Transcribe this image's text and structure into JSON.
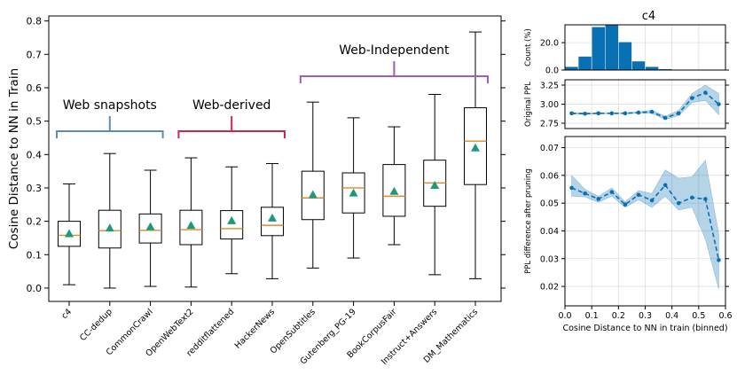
{
  "chart_data": [
    {
      "type": "box",
      "title": "",
      "xlabel": "",
      "ylabel": "Cosine Distance to NN in Train",
      "ylim": [
        -0.04,
        0.815
      ],
      "yticks": [
        "0.0",
        "0.1",
        "0.2",
        "0.3",
        "0.4",
        "0.5",
        "0.6",
        "0.7",
        "0.8"
      ],
      "categories": [
        "c4",
        "CC-dedup",
        "CommonCrawl",
        "OpenWebText2",
        "redditflattened",
        "HackerNews",
        "OpenSubtitles",
        "Gutenberg_PG-19",
        "BookCorpusFair",
        "Instruct+Answers",
        "DM_Mathematics"
      ],
      "boxes": [
        {
          "whislo": 0.01,
          "q1": 0.125,
          "med": 0.158,
          "q3": 0.2,
          "whishi": 0.312,
          "mean": 0.163
        },
        {
          "whislo": 0.0,
          "q1": 0.12,
          "med": 0.172,
          "q3": 0.233,
          "whishi": 0.403,
          "mean": 0.18
        },
        {
          "whislo": 0.005,
          "q1": 0.135,
          "med": 0.173,
          "q3": 0.222,
          "whishi": 0.353,
          "mean": 0.184
        },
        {
          "whislo": 0.003,
          "q1": 0.13,
          "med": 0.175,
          "q3": 0.233,
          "whishi": 0.39,
          "mean": 0.188
        },
        {
          "whislo": 0.043,
          "q1": 0.147,
          "med": 0.178,
          "q3": 0.232,
          "whishi": 0.363,
          "mean": 0.202
        },
        {
          "whislo": 0.028,
          "q1": 0.157,
          "med": 0.188,
          "q3": 0.242,
          "whishi": 0.373,
          "mean": 0.21
        },
        {
          "whislo": 0.06,
          "q1": 0.205,
          "med": 0.27,
          "q3": 0.35,
          "whishi": 0.557,
          "mean": 0.28
        },
        {
          "whislo": 0.09,
          "q1": 0.225,
          "med": 0.3,
          "q3": 0.345,
          "whishi": 0.51,
          "mean": 0.285
        },
        {
          "whislo": 0.13,
          "q1": 0.215,
          "med": 0.275,
          "q3": 0.37,
          "whishi": 0.483,
          "mean": 0.29
        },
        {
          "whislo": 0.04,
          "q1": 0.245,
          "med": 0.315,
          "q3": 0.383,
          "whishi": 0.58,
          "mean": 0.308
        },
        {
          "whislo": 0.028,
          "q1": 0.31,
          "med": 0.44,
          "q3": 0.54,
          "whishi": 0.767,
          "mean": 0.42
        }
      ],
      "groups": [
        {
          "label": "Web snapshots",
          "color": "#5a8db3",
          "from": 0,
          "to": 2
        },
        {
          "label": "Web-derived",
          "color": "#c8284b",
          "from": 3,
          "to": 5
        },
        {
          "label": "Web-Independent",
          "color": "#9e5cc0",
          "from": 6,
          "to": 10
        }
      ],
      "colors": {
        "box": "#000000",
        "median": "#e08a2c",
        "mean": "#1a9a7a"
      }
    },
    {
      "type": "bar",
      "title": "c4",
      "ylabel": "Count (%)",
      "ylim": [
        0,
        33
      ],
      "yticks": [
        "0.0",
        "20.0"
      ],
      "bin_edges": [
        0.0,
        0.05,
        0.1,
        0.15,
        0.2,
        0.25,
        0.3,
        0.35,
        0.4,
        0.45,
        0.5
      ],
      "values": [
        2.5,
        10,
        31.5,
        33,
        20.5,
        6.5,
        2.5,
        0.8,
        0.3,
        0.2
      ],
      "color": "#0a70b4"
    },
    {
      "type": "line",
      "ylabel": "Original PPL",
      "ylim": [
        2.68,
        3.32
      ],
      "yticks": [
        "2.75",
        "3.00",
        "3.25"
      ],
      "x": [
        0.025,
        0.075,
        0.125,
        0.175,
        0.225,
        0.275,
        0.325,
        0.375,
        0.425,
        0.475,
        0.525,
        0.575
      ],
      "y": [
        2.88,
        2.875,
        2.88,
        2.88,
        2.88,
        2.89,
        2.9,
        2.82,
        2.88,
        3.08,
        3.15,
        3.0
      ],
      "ci_low": [
        2.87,
        2.865,
        2.875,
        2.875,
        2.875,
        2.88,
        2.88,
        2.8,
        2.85,
        3.02,
        3.05,
        2.86
      ],
      "ci_high": [
        2.89,
        2.885,
        2.885,
        2.885,
        2.885,
        2.9,
        2.92,
        2.84,
        2.92,
        3.14,
        3.25,
        3.14
      ],
      "color": "#0a70b4"
    },
    {
      "type": "line",
      "xlabel": "Cosine Distance to NN in train (binned)",
      "ylabel": "PPL difference after pruning",
      "xlim": [
        0.0,
        0.6
      ],
      "ylim": [
        0.013,
        0.074
      ],
      "xticks": [
        "0.0",
        "0.1",
        "0.2",
        "0.3",
        "0.4",
        "0.5",
        "0.6"
      ],
      "yticks": [
        "0.02",
        "0.03",
        "0.04",
        "0.05",
        "0.06",
        "0.07"
      ],
      "x": [
        0.025,
        0.075,
        0.125,
        0.175,
        0.225,
        0.275,
        0.325,
        0.375,
        0.425,
        0.475,
        0.525,
        0.575
      ],
      "y": [
        0.0555,
        0.0535,
        0.0515,
        0.054,
        0.0495,
        0.053,
        0.051,
        0.0565,
        0.05,
        0.052,
        0.0515,
        0.0295
      ],
      "ci_low": [
        0.0525,
        0.0522,
        0.0503,
        0.0525,
        0.0485,
        0.0512,
        0.0485,
        0.0525,
        0.0475,
        0.0485,
        0.037,
        0.019
      ],
      "ci_high": [
        0.06,
        0.055,
        0.0525,
        0.0555,
        0.0505,
        0.0545,
        0.0535,
        0.062,
        0.059,
        0.0595,
        0.0655,
        0.039
      ],
      "color": "#0a70b4"
    }
  ]
}
